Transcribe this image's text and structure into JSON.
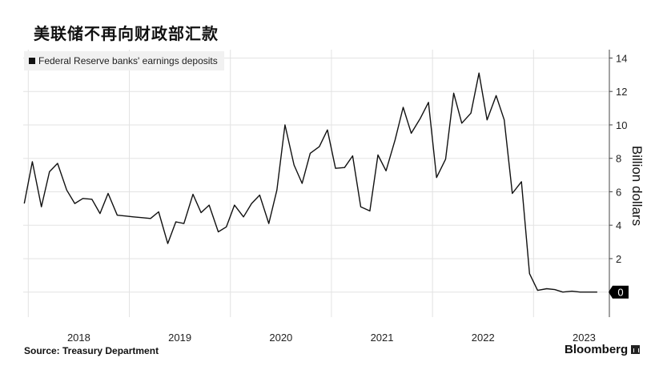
{
  "header": {
    "title": "美联储不再向财政部汇款"
  },
  "footer": {
    "source": "Source: Treasury Department",
    "brand": "Bloomberg"
  },
  "chart_data": {
    "type": "line",
    "ylabel": "Billion dollars",
    "xlabel": "",
    "ylim": [
      -1.5,
      14.5
    ],
    "yticks": [
      0,
      2,
      4,
      6,
      8,
      10,
      12,
      14
    ],
    "xlim": [
      2017.45,
      2023.25
    ],
    "x_tick_labels": [
      "2018",
      "2019",
      "2020",
      "2021",
      "2022",
      "2023"
    ],
    "x_tick_values": [
      2018,
      2019,
      2020,
      2021,
      2022,
      2023
    ],
    "grid": true,
    "legend_position": "top-left",
    "last_value_label": "0",
    "series": [
      {
        "name": "Federal Reserve banks' earnings deposits",
        "color": "#111111",
        "points": [
          [
            2017.46,
            5.3
          ],
          [
            2017.54,
            7.8
          ],
          [
            2017.63,
            5.1
          ],
          [
            2017.71,
            7.2
          ],
          [
            2017.79,
            7.7
          ],
          [
            2017.88,
            6.1
          ],
          [
            2017.96,
            5.3
          ],
          [
            2018.04,
            5.6
          ],
          [
            2018.13,
            5.55
          ],
          [
            2018.21,
            4.7
          ],
          [
            2018.29,
            5.9
          ],
          [
            2018.38,
            4.6
          ],
          [
            2018.46,
            4.55
          ],
          [
            2018.54,
            4.5
          ],
          [
            2018.63,
            4.45
          ],
          [
            2018.71,
            4.4
          ],
          [
            2018.79,
            4.8
          ],
          [
            2018.88,
            2.9
          ],
          [
            2018.96,
            4.2
          ],
          [
            2019.04,
            4.1
          ],
          [
            2019.13,
            5.85
          ],
          [
            2019.21,
            4.75
          ],
          [
            2019.29,
            5.2
          ],
          [
            2019.38,
            3.6
          ],
          [
            2019.46,
            3.9
          ],
          [
            2019.54,
            5.2
          ],
          [
            2019.63,
            4.5
          ],
          [
            2019.71,
            5.3
          ],
          [
            2019.79,
            5.8
          ],
          [
            2019.88,
            4.1
          ],
          [
            2019.96,
            6.1
          ],
          [
            2020.04,
            10.0
          ],
          [
            2020.13,
            7.6
          ],
          [
            2020.21,
            6.5
          ],
          [
            2020.29,
            8.3
          ],
          [
            2020.38,
            8.7
          ],
          [
            2020.46,
            9.7
          ],
          [
            2020.54,
            7.4
          ],
          [
            2020.63,
            7.45
          ],
          [
            2020.71,
            8.15
          ],
          [
            2020.79,
            5.1
          ],
          [
            2020.88,
            4.85
          ],
          [
            2020.96,
            8.2
          ],
          [
            2021.04,
            7.25
          ],
          [
            2021.13,
            9.1
          ],
          [
            2021.21,
            11.05
          ],
          [
            2021.29,
            9.5
          ],
          [
            2021.38,
            10.4
          ],
          [
            2021.46,
            11.35
          ],
          [
            2021.54,
            6.85
          ],
          [
            2021.63,
            7.95
          ],
          [
            2021.71,
            11.9
          ],
          [
            2021.79,
            10.1
          ],
          [
            2021.88,
            10.7
          ],
          [
            2021.96,
            13.1
          ],
          [
            2022.04,
            10.3
          ],
          [
            2022.13,
            11.75
          ],
          [
            2022.21,
            10.3
          ],
          [
            2022.29,
            5.9
          ],
          [
            2022.38,
            6.6
          ],
          [
            2022.46,
            1.1
          ],
          [
            2022.54,
            0.1
          ],
          [
            2022.63,
            0.2
          ],
          [
            2022.71,
            0.15
          ],
          [
            2022.79,
            0.0
          ],
          [
            2022.88,
            0.05
          ],
          [
            2022.96,
            0.0
          ],
          [
            2023.04,
            0.0
          ],
          [
            2023.13,
            0.0
          ]
        ]
      }
    ]
  }
}
